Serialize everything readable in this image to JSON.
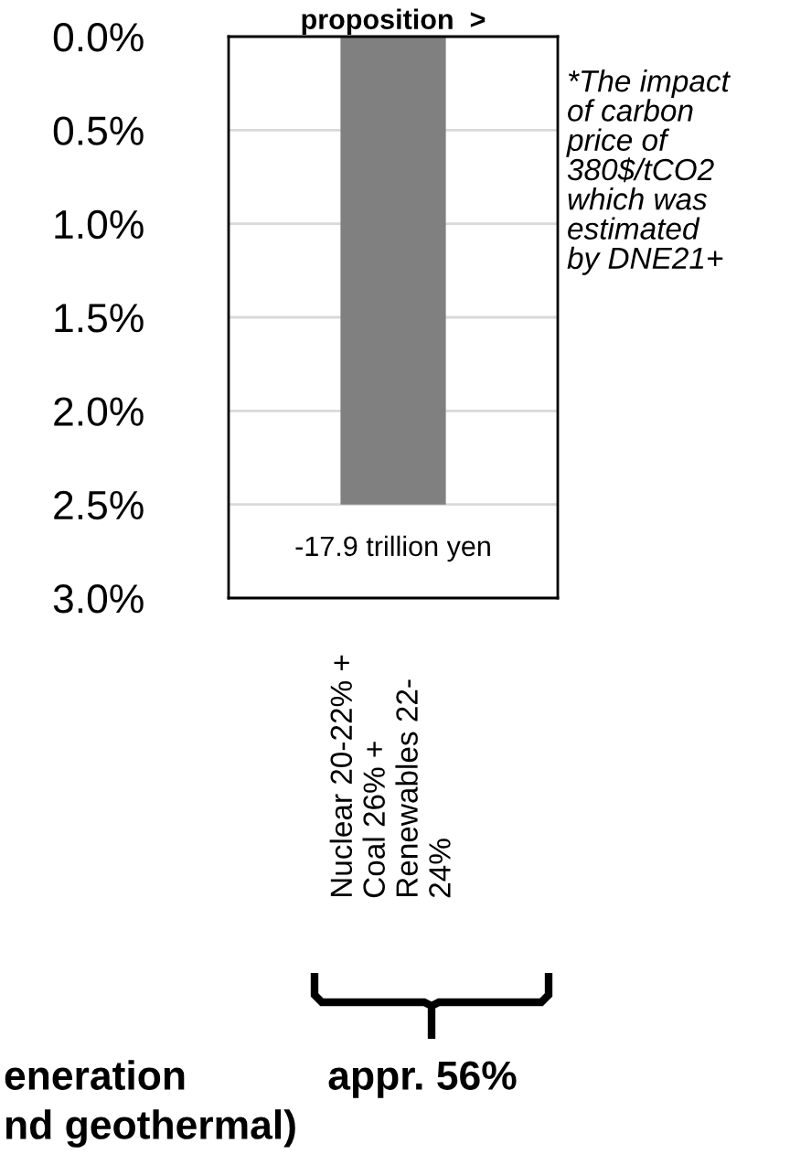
{
  "chart_data": {
    "type": "bar",
    "title": "proposition  >",
    "categories": [
      "Nuclear 20-22% +\nCoal 26% +\nRenewables 22-\n24%"
    ],
    "values": [
      -2.5
    ],
    "color": "#808080",
    "ylim": [
      -3.0,
      0.0
    ],
    "yticks": [
      {
        "value": 0.0,
        "label": "0.0%"
      },
      {
        "value": -0.5,
        "label": "0.5%"
      },
      {
        "value": -1.0,
        "label": "1.0%"
      },
      {
        "value": -1.5,
        "label": "1.5%"
      },
      {
        "value": -2.0,
        "label": "2.0%"
      },
      {
        "value": -2.5,
        "label": "2.5%"
      },
      {
        "value": -3.0,
        "label": "3.0%"
      }
    ],
    "grid": "y",
    "annotations": [
      "*The impact\nof carbon\nprice of\n380$/tCO2\nwhich was\nestimated\nby DNE21+",
      "appr. 56%",
      "eneration",
      "nd geothermal)",
      "-17.9 trillion yen"
    ]
  }
}
